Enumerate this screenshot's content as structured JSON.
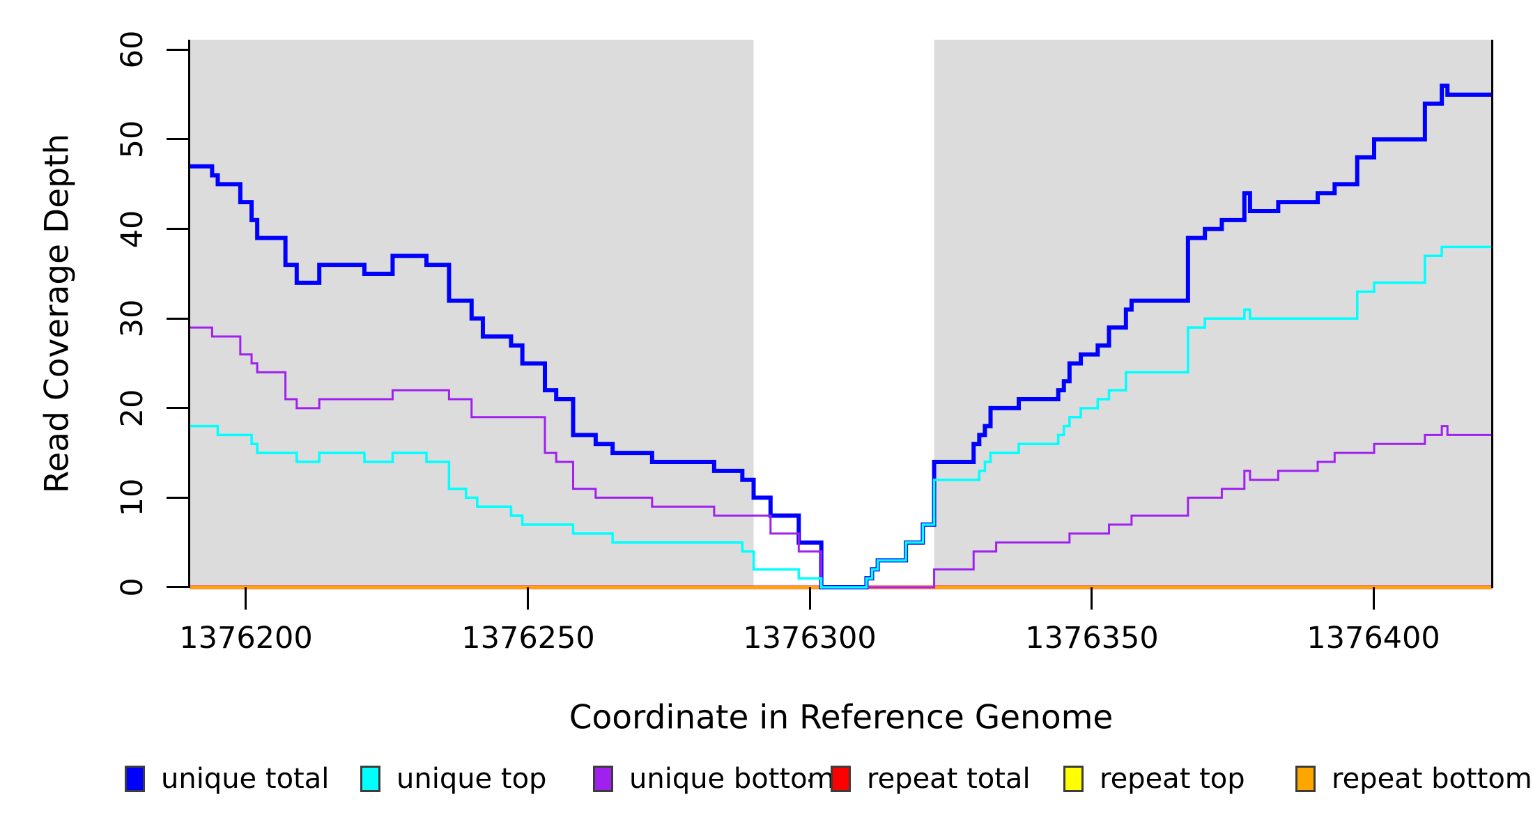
{
  "figure": {
    "x_axis_title": "Coordinate in Reference Genome",
    "y_axis_title": "Read Coverage Depth"
  },
  "axes": {
    "x": {
      "ticks": [
        {
          "value": 1376200,
          "label": "1376200"
        },
        {
          "value": 1376250,
          "label": "1376250"
        },
        {
          "value": 1376300,
          "label": "1376300"
        },
        {
          "value": 1376350,
          "label": "1376350"
        },
        {
          "value": 1376400,
          "label": "1376400"
        }
      ]
    },
    "y": {
      "ticks": [
        {
          "value": 0,
          "label": "0"
        },
        {
          "value": 10,
          "label": "10"
        },
        {
          "value": 20,
          "label": "20"
        },
        {
          "value": 30,
          "label": "30"
        },
        {
          "value": 40,
          "label": "40"
        },
        {
          "value": 50,
          "label": "50"
        },
        {
          "value": 60,
          "label": "60"
        }
      ]
    }
  },
  "legend": {
    "items": [
      {
        "label": "unique total",
        "color": "#0000ff"
      },
      {
        "label": "unique top",
        "color": "#00ffff"
      },
      {
        "label": "unique bottom",
        "color": "#a020f0"
      },
      {
        "label": "repeat total",
        "color": "#ff0000"
      },
      {
        "label": "repeat top",
        "color": "#ffff00"
      },
      {
        "label": "repeat bottom",
        "color": "#ffa500"
      }
    ]
  },
  "chart_data": {
    "type": "line",
    "subtype": "step",
    "title": "",
    "xlabel": "Coordinate in Reference Genome",
    "ylabel": "Read Coverage Depth",
    "xlim": [
      1376190,
      1376421
    ],
    "ylim": [
      0,
      60
    ],
    "grid": false,
    "legend_position": "bottom",
    "shade_color": "#dcdcdc",
    "shaded_regions": [
      [
        1376190,
        1376290
      ],
      [
        1376322,
        1376421
      ]
    ],
    "series": [
      {
        "name": "repeat top",
        "color": "#ffff00",
        "width": 2,
        "points": [
          [
            1376190,
            0
          ]
        ]
      },
      {
        "name": "repeat total",
        "color": "#ff0000",
        "width": 5,
        "points": [
          [
            1376190,
            0
          ]
        ]
      },
      {
        "name": "repeat bottom",
        "color": "#ffa500",
        "width": 4,
        "points": [
          [
            1376190,
            0
          ]
        ]
      },
      {
        "name": "unique total",
        "color": "#0000ff",
        "width": 6,
        "points": [
          [
            1376190,
            47
          ],
          [
            1376194,
            46
          ],
          [
            1376195,
            45
          ],
          [
            1376199,
            43
          ],
          [
            1376201,
            41
          ],
          [
            1376202,
            39
          ],
          [
            1376207,
            36
          ],
          [
            1376209,
            34
          ],
          [
            1376213,
            36
          ],
          [
            1376221,
            35
          ],
          [
            1376226,
            37
          ],
          [
            1376232,
            36
          ],
          [
            1376236,
            32
          ],
          [
            1376240,
            30
          ],
          [
            1376242,
            28
          ],
          [
            1376247,
            27
          ],
          [
            1376249,
            25
          ],
          [
            1376253,
            22
          ],
          [
            1376255,
            21
          ],
          [
            1376258,
            17
          ],
          [
            1376262,
            16
          ],
          [
            1376265,
            15
          ],
          [
            1376272,
            14
          ],
          [
            1376283,
            13
          ],
          [
            1376288,
            12
          ],
          [
            1376290,
            10
          ],
          [
            1376293,
            8
          ],
          [
            1376298,
            5
          ],
          [
            1376302,
            0
          ],
          [
            1376310,
            1
          ],
          [
            1376311,
            2
          ],
          [
            1376312,
            3
          ],
          [
            1376317,
            5
          ],
          [
            1376320,
            7
          ],
          [
            1376322,
            14
          ],
          [
            1376329,
            16
          ],
          [
            1376330,
            17
          ],
          [
            1376331,
            18
          ],
          [
            1376332,
            20
          ],
          [
            1376337,
            21
          ],
          [
            1376344,
            22
          ],
          [
            1376345,
            23
          ],
          [
            1376346,
            25
          ],
          [
            1376348,
            26
          ],
          [
            1376351,
            27
          ],
          [
            1376353,
            29
          ],
          [
            1376356,
            31
          ],
          [
            1376357,
            32
          ],
          [
            1376367,
            39
          ],
          [
            1376370,
            40
          ],
          [
            1376373,
            41
          ],
          [
            1376377,
            44
          ],
          [
            1376378,
            42
          ],
          [
            1376383,
            43
          ],
          [
            1376390,
            44
          ],
          [
            1376393,
            45
          ],
          [
            1376397,
            48
          ],
          [
            1376400,
            50
          ],
          [
            1376409,
            54
          ],
          [
            1376412,
            56
          ],
          [
            1376413,
            55
          ]
        ]
      },
      {
        "name": "unique bottom",
        "color": "#a020f0",
        "width": 3,
        "points": [
          [
            1376190,
            29
          ],
          [
            1376194,
            28
          ],
          [
            1376199,
            26
          ],
          [
            1376201,
            25
          ],
          [
            1376202,
            24
          ],
          [
            1376207,
            21
          ],
          [
            1376209,
            20
          ],
          [
            1376213,
            21
          ],
          [
            1376226,
            22
          ],
          [
            1376236,
            21
          ],
          [
            1376240,
            19
          ],
          [
            1376253,
            15
          ],
          [
            1376255,
            14
          ],
          [
            1376258,
            11
          ],
          [
            1376262,
            10
          ],
          [
            1376272,
            9
          ],
          [
            1376283,
            8
          ],
          [
            1376293,
            6
          ],
          [
            1376298,
            4
          ],
          [
            1376302,
            0
          ],
          [
            1376322,
            2
          ],
          [
            1376329,
            4
          ],
          [
            1376333,
            5
          ],
          [
            1376346,
            6
          ],
          [
            1376353,
            7
          ],
          [
            1376357,
            8
          ],
          [
            1376367,
            10
          ],
          [
            1376373,
            11
          ],
          [
            1376377,
            13
          ],
          [
            1376378,
            12
          ],
          [
            1376383,
            13
          ],
          [
            1376390,
            14
          ],
          [
            1376393,
            15
          ],
          [
            1376400,
            16
          ],
          [
            1376409,
            17
          ],
          [
            1376412,
            18
          ],
          [
            1376413,
            17
          ]
        ]
      },
      {
        "name": "unique top",
        "color": "#00ffff",
        "width": 3.5,
        "points": [
          [
            1376190,
            18
          ],
          [
            1376195,
            17
          ],
          [
            1376201,
            16
          ],
          [
            1376202,
            15
          ],
          [
            1376209,
            14
          ],
          [
            1376213,
            15
          ],
          [
            1376221,
            14
          ],
          [
            1376226,
            15
          ],
          [
            1376232,
            14
          ],
          [
            1376236,
            11
          ],
          [
            1376239,
            10
          ],
          [
            1376241,
            9
          ],
          [
            1376247,
            8
          ],
          [
            1376249,
            7
          ],
          [
            1376258,
            6
          ],
          [
            1376265,
            5
          ],
          [
            1376288,
            4
          ],
          [
            1376290,
            2
          ],
          [
            1376298,
            1
          ],
          [
            1376302,
            0
          ],
          [
            1376310,
            1
          ],
          [
            1376311,
            2
          ],
          [
            1376312,
            3
          ],
          [
            1376317,
            5
          ],
          [
            1376320,
            7
          ],
          [
            1376322,
            12
          ],
          [
            1376330,
            13
          ],
          [
            1376331,
            14
          ],
          [
            1376332,
            15
          ],
          [
            1376337,
            16
          ],
          [
            1376344,
            17
          ],
          [
            1376345,
            18
          ],
          [
            1376346,
            19
          ],
          [
            1376348,
            20
          ],
          [
            1376351,
            21
          ],
          [
            1376353,
            22
          ],
          [
            1376356,
            24
          ],
          [
            1376367,
            29
          ],
          [
            1376370,
            30
          ],
          [
            1376377,
            31
          ],
          [
            1376378,
            30
          ],
          [
            1376397,
            33
          ],
          [
            1376400,
            34
          ],
          [
            1376409,
            37
          ],
          [
            1376412,
            38
          ]
        ]
      }
    ]
  }
}
